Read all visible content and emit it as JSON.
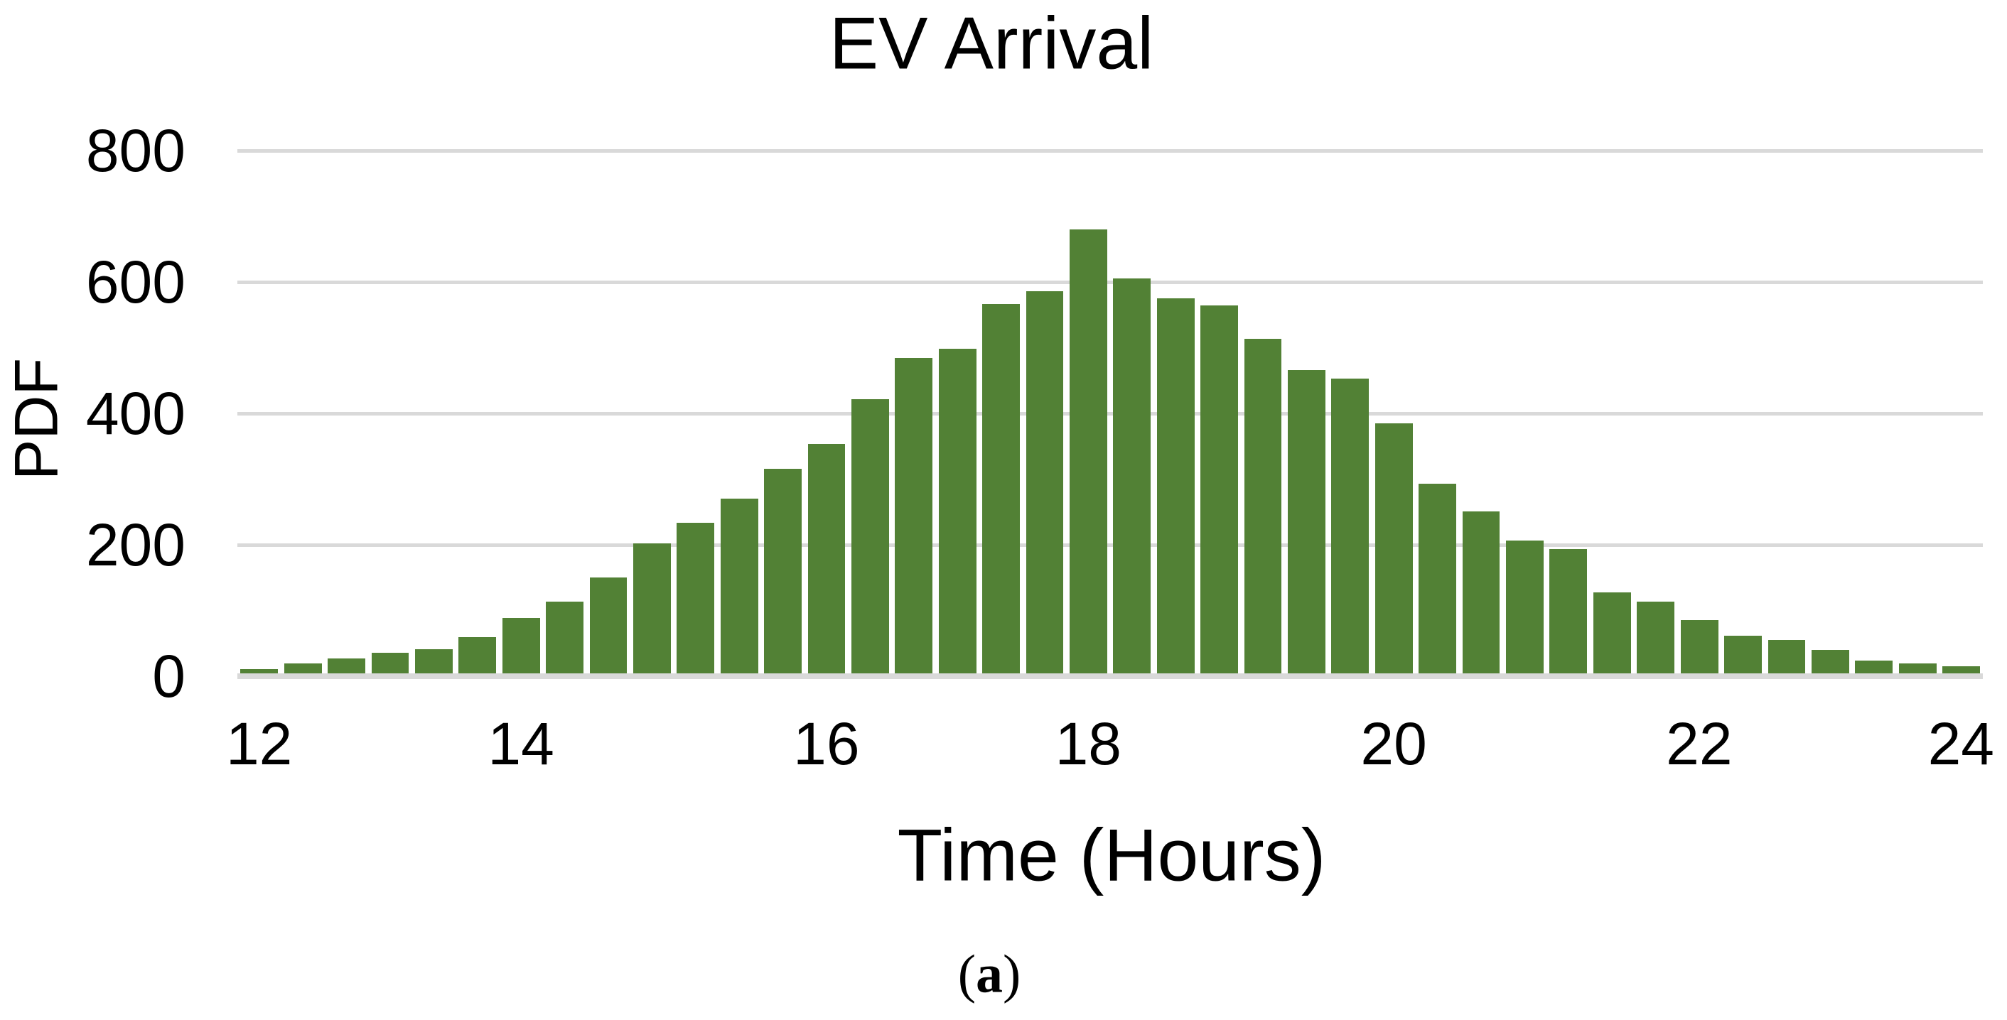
{
  "figure": {
    "caption_open": "(",
    "caption_letter": "a",
    "caption_close": ")"
  },
  "chart_data": {
    "type": "bar",
    "title": "EV Arrival",
    "xlabel": "Time (Hours)",
    "ylabel": "PDF",
    "ylim": [
      0,
      800
    ],
    "yticks": [
      0,
      200,
      400,
      600,
      800
    ],
    "xticks": [
      "12",
      "14",
      "16",
      "18",
      "20",
      "22",
      "24"
    ],
    "xtick_bar_indices": [
      0,
      6,
      13,
      19,
      26,
      33,
      39
    ],
    "grid": "horizontal-only",
    "legend_position": "none",
    "bar_color": "#528135",
    "gridline_color": "#d9d9d9",
    "x_hours": [
      12.0,
      12.33,
      12.67,
      13.0,
      13.33,
      13.67,
      14.0,
      14.29,
      14.57,
      14.86,
      15.14,
      15.43,
      15.71,
      16.0,
      16.33,
      16.67,
      17.0,
      17.33,
      17.67,
      18.0,
      18.29,
      18.57,
      18.86,
      19.14,
      19.43,
      19.71,
      20.0,
      20.29,
      20.57,
      20.86,
      21.14,
      21.43,
      21.71,
      22.0,
      22.33,
      22.67,
      23.0,
      23.33,
      23.67,
      24.0
    ],
    "values": [
      11,
      19,
      27,
      36,
      41,
      60,
      89,
      113,
      150,
      202,
      233,
      270,
      316,
      354,
      422,
      484,
      498,
      566,
      586,
      680,
      605,
      575,
      564,
      514,
      466,
      453,
      385,
      293,
      251,
      206,
      193,
      128,
      113,
      85,
      62,
      55,
      40,
      24,
      20,
      15
    ]
  }
}
